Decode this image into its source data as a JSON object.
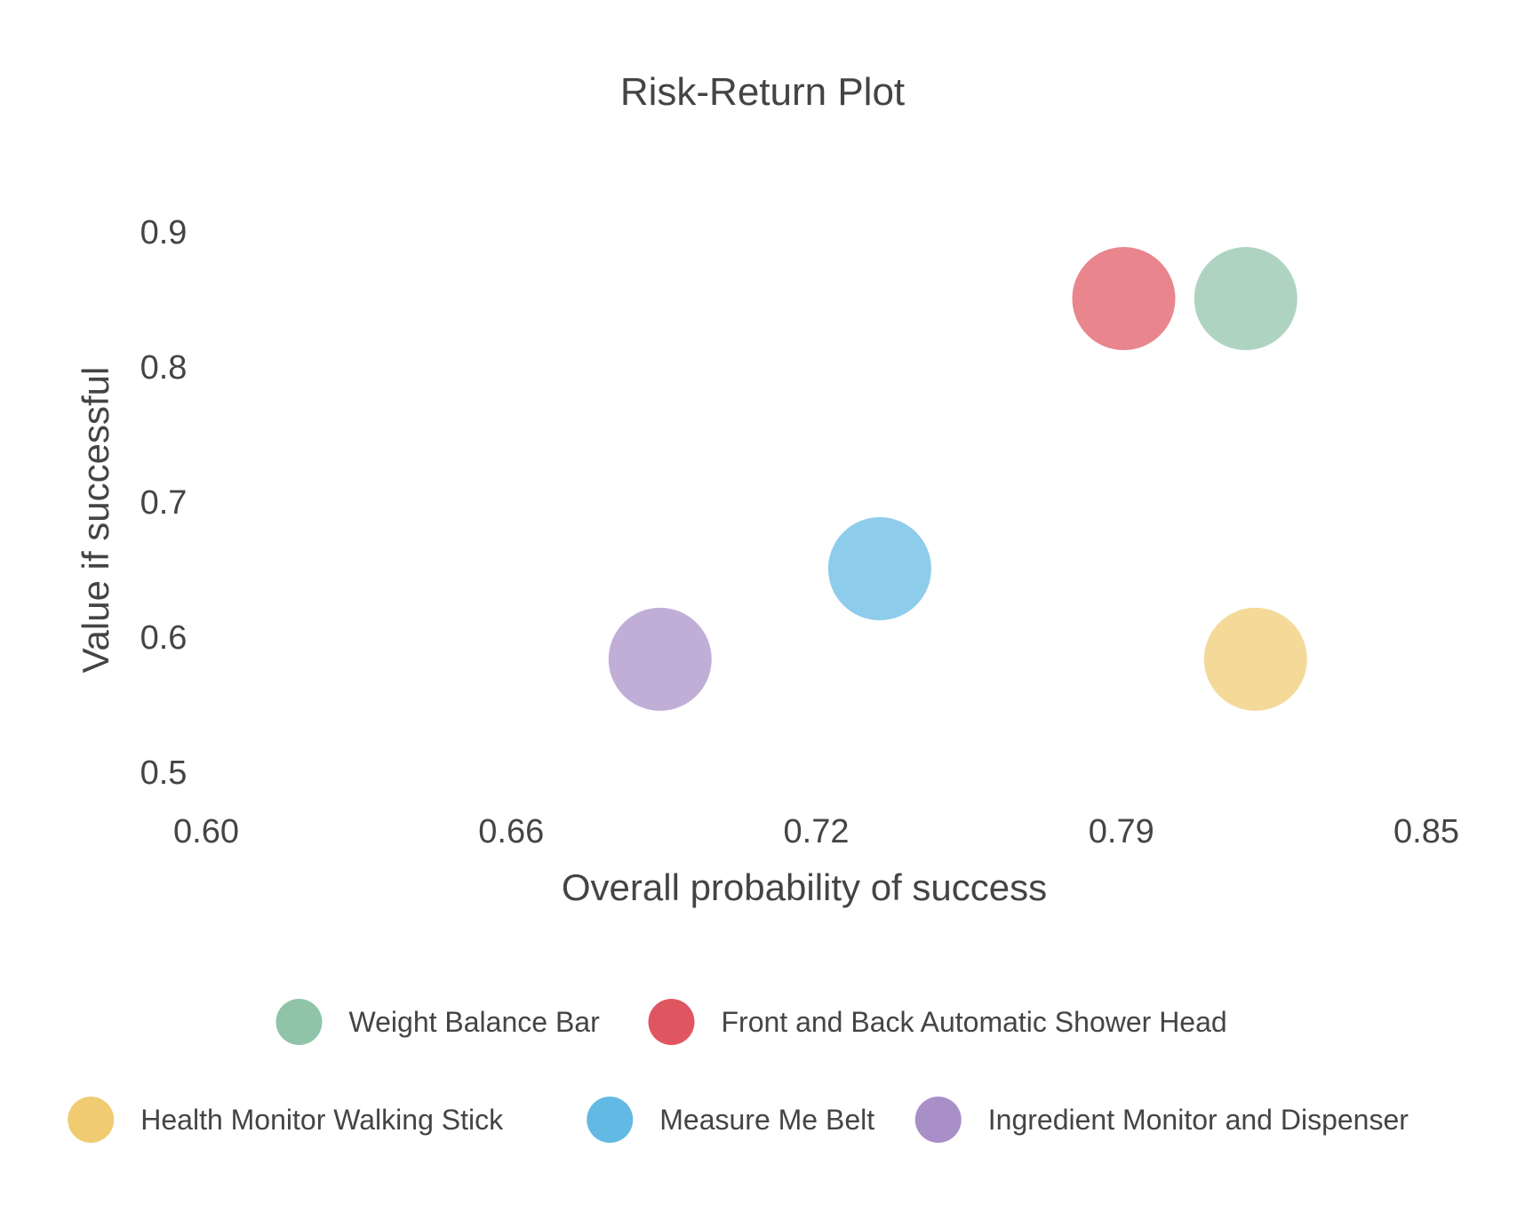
{
  "chart_data": {
    "type": "scatter",
    "title": "Risk-Return Plot",
    "xlabel": "Overall probability of success",
    "ylabel": "Value if successful",
    "xlim": [
      0.6,
      0.85
    ],
    "ylim": [
      0.5,
      0.9
    ],
    "x_ticks": [
      "0.60",
      "0.66",
      "0.72",
      "0.79",
      "0.85"
    ],
    "y_ticks": [
      "0.5",
      "0.6",
      "0.7",
      "0.8",
      "0.9"
    ],
    "grid": false,
    "legend_position": "bottom",
    "series": [
      {
        "name": "Weight Balance Bar",
        "color": "#8fc4a9",
        "x": 0.813,
        "y": 0.85
      },
      {
        "name": "Front and Back Automatic Shower Head",
        "color": "#e05660",
        "x": 0.788,
        "y": 0.85
      },
      {
        "name": "Health Monitor Walking Stick",
        "color": "#f0cb72",
        "x": 0.815,
        "y": 0.583
      },
      {
        "name": "Measure Me Belt",
        "color": "#62b9e3",
        "x": 0.738,
        "y": 0.65
      },
      {
        "name": "Ingredient Monitor and Dispenser",
        "color": "#a98fc8",
        "x": 0.693,
        "y": 0.583
      }
    ]
  }
}
